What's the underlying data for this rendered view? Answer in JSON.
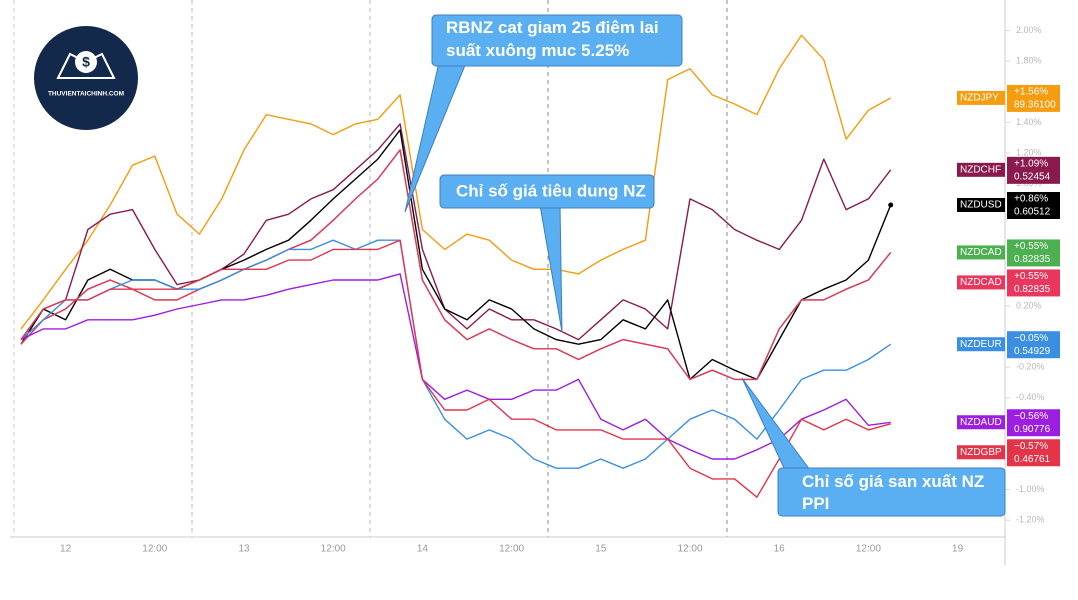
{
  "logo_text": "THUVIENTAICHINH.COM",
  "chart_data": {
    "type": "line",
    "annotations": [
      "RBNZ cat giam 25 điêm lai suất xuông muc 5.25%",
      "Chỉ số giá tiêu dung NZ",
      "Chỉ số giá san xuất NZ PPI"
    ],
    "categories": [
      null,
      null,
      "12",
      null,
      null,
      null,
      "12:00",
      null,
      null,
      null,
      "13",
      null,
      null,
      null,
      "12:00",
      null,
      null,
      null,
      "14",
      null,
      null,
      null,
      "12:00",
      null,
      null,
      null,
      "15",
      null,
      null,
      null,
      "12:00",
      null,
      null,
      null,
      "16",
      null,
      null,
      null,
      "12:00",
      null,
      null,
      null,
      "19"
    ],
    "ylim": [
      -1.31,
      2.2
    ],
    "yticks": [
      {
        "value": -1.2,
        "label": "-1.20%"
      },
      {
        "value": -1.0,
        "label": "-1.00%"
      },
      {
        "value": -0.8,
        "label": "-0.80%"
      },
      {
        "value": -0.6,
        "label": "-0.60%"
      },
      {
        "value": -0.4,
        "label": "-0.40%"
      },
      {
        "value": -0.2,
        "label": "-0.20%"
      },
      {
        "value": 0,
        "label": "0.00%"
      },
      {
        "value": 0.2,
        "label": "0.20%"
      },
      {
        "value": 0.4,
        "label": "0.40%"
      },
      {
        "value": 0.6,
        "label": "0.60%"
      },
      {
        "value": 0.8,
        "label": "0.80%"
      },
      {
        "value": 1.0,
        "label": "1.00%"
      },
      {
        "value": 1.2,
        "label": "1.20%"
      },
      {
        "value": 1.4,
        "label": "1.40%"
      },
      {
        "value": 1.6,
        "label": "1.60%"
      },
      {
        "value": 1.8,
        "label": "1.80%"
      },
      {
        "value": 2.0,
        "label": "2.00%"
      }
    ],
    "series": [
      {
        "name": "NZDJPY",
        "color": "#f59c0f",
        "change_label": "+1.56%",
        "price_label": "89.36100",
        "values": [
          0.05,
          0.24,
          0.44,
          0.63,
          0.86,
          1.12,
          1.18,
          0.8,
          0.67,
          0.9,
          1.22,
          1.45,
          1.42,
          1.39,
          1.32,
          1.39,
          1.42,
          1.58,
          0.7,
          0.57,
          0.67,
          0.63,
          0.5,
          0.44,
          0.44,
          0.41,
          0.5,
          0.57,
          0.63,
          1.68,
          1.75,
          1.58,
          1.52,
          1.45,
          1.75,
          1.97,
          1.81,
          1.29,
          1.48,
          1.56,
          null,
          null,
          null
        ]
      },
      {
        "name": "NZDCHF",
        "color": "#8a1a4d",
        "change_label": "+1.09%",
        "price_label": "0.52454",
        "values": [
          -0.02,
          0.18,
          0.24,
          0.7,
          0.8,
          0.83,
          0.57,
          0.34,
          0.37,
          0.44,
          0.54,
          0.76,
          0.8,
          0.9,
          0.96,
          1.09,
          1.22,
          1.39,
          0.57,
          0.18,
          0.05,
          0.18,
          0.11,
          0.11,
          0.05,
          -0.02,
          0.11,
          0.24,
          0.18,
          0.05,
          0.9,
          0.83,
          0.7,
          0.63,
          0.57,
          0.76,
          1.16,
          0.83,
          0.9,
          1.09,
          null,
          null,
          null
        ]
      },
      {
        "name": "NZDUSD",
        "color": "#000000",
        "change_label": "+0.86%",
        "price_label": "0.60512",
        "values": [
          -0.05,
          0.18,
          0.11,
          0.37,
          0.44,
          0.37,
          0.37,
          0.31,
          0.37,
          0.44,
          0.5,
          0.57,
          0.63,
          0.76,
          0.9,
          1.03,
          1.16,
          1.35,
          0.44,
          0.18,
          0.11,
          0.24,
          0.18,
          0.05,
          -0.02,
          -0.05,
          -0.02,
          0.11,
          0.05,
          0.24,
          -0.28,
          -0.15,
          -0.22,
          -0.28,
          -0.02,
          0.24,
          0.31,
          0.37,
          0.5,
          0.86,
          null,
          null,
          null
        ]
      },
      {
        "name": "NZDCAD",
        "color": "#4caf50",
        "change_label": "+0.55%",
        "price_label": "0.82835",
        "values": [
          -0.05,
          0.11,
          0.18,
          0.31,
          0.37,
          0.31,
          0.24,
          0.24,
          0.31,
          0.37,
          0.44,
          0.5,
          0.57,
          0.63,
          0.76,
          0.9,
          1.03,
          1.22,
          0.37,
          0.11,
          -0.02,
          0.05,
          -0.02,
          -0.08,
          -0.08,
          -0.15,
          -0.08,
          -0.02,
          -0.05,
          -0.08,
          -0.28,
          -0.22,
          -0.28,
          -0.28,
          0.05,
          0.24,
          0.24,
          0.31,
          0.37,
          0.55,
          null,
          null,
          null
        ]
      },
      {
        "name": "NZDCAD",
        "color": "#e8365d",
        "change_label": "+0.55%",
        "price_label": "0.82835",
        "values": [
          -0.05,
          0.11,
          0.18,
          0.31,
          0.37,
          0.31,
          0.24,
          0.24,
          0.31,
          0.37,
          0.44,
          0.5,
          0.57,
          0.63,
          0.76,
          0.9,
          1.03,
          1.22,
          0.37,
          0.11,
          -0.02,
          0.05,
          -0.02,
          -0.08,
          -0.08,
          -0.15,
          -0.08,
          -0.02,
          -0.05,
          -0.08,
          -0.28,
          -0.22,
          -0.28,
          -0.28,
          0.05,
          0.24,
          0.24,
          0.31,
          0.37,
          0.55,
          null,
          null,
          null
        ]
      },
      {
        "name": "NZDEUR",
        "color": "#3b8fe3",
        "change_label": "−0.05%",
        "price_label": "0.54929",
        "values": [
          -0.02,
          0.11,
          0.24,
          0.24,
          0.31,
          0.37,
          0.37,
          0.31,
          0.31,
          0.37,
          0.44,
          0.5,
          0.57,
          0.57,
          0.63,
          0.57,
          0.63,
          0.63,
          -0.28,
          -0.54,
          -0.67,
          -0.61,
          -0.67,
          -0.8,
          -0.86,
          -0.86,
          -0.8,
          -0.86,
          -0.8,
          -0.67,
          -0.54,
          -0.48,
          -0.54,
          -0.67,
          -0.48,
          -0.28,
          -0.22,
          -0.22,
          -0.15,
          -0.05,
          null,
          null,
          null
        ]
      },
      {
        "name": "NZDAUD",
        "color": "#9c1ee0",
        "change_label": "−0.56%",
        "price_label": "0.90776",
        "values": [
          -0.02,
          0.05,
          0.05,
          0.11,
          0.11,
          0.11,
          0.14,
          0.18,
          0.21,
          0.24,
          0.24,
          0.27,
          0.31,
          0.34,
          0.37,
          0.37,
          0.37,
          0.41,
          -0.28,
          -0.41,
          -0.35,
          -0.41,
          -0.41,
          -0.35,
          -0.35,
          -0.28,
          -0.54,
          -0.61,
          -0.54,
          -0.67,
          -0.74,
          -0.8,
          -0.8,
          -0.74,
          -0.67,
          -0.54,
          -0.48,
          -0.41,
          -0.58,
          -0.56,
          null,
          null,
          null
        ]
      },
      {
        "name": "NZDGBP",
        "color": "#e3344a",
        "change_label": "−0.57%",
        "price_label": "0.46761",
        "values": [
          -0.02,
          0.18,
          0.24,
          0.24,
          0.31,
          0.31,
          0.31,
          0.31,
          0.37,
          0.44,
          0.44,
          0.44,
          0.5,
          0.5,
          0.57,
          0.57,
          0.57,
          0.63,
          -0.28,
          -0.48,
          -0.48,
          -0.41,
          -0.54,
          -0.54,
          -0.61,
          -0.61,
          -0.61,
          -0.67,
          -0.67,
          -0.67,
          -0.86,
          -0.93,
          -0.93,
          -1.05,
          -0.8,
          -0.54,
          -0.61,
          -0.54,
          -0.61,
          -0.57,
          null,
          null,
          null
        ]
      }
    ]
  }
}
